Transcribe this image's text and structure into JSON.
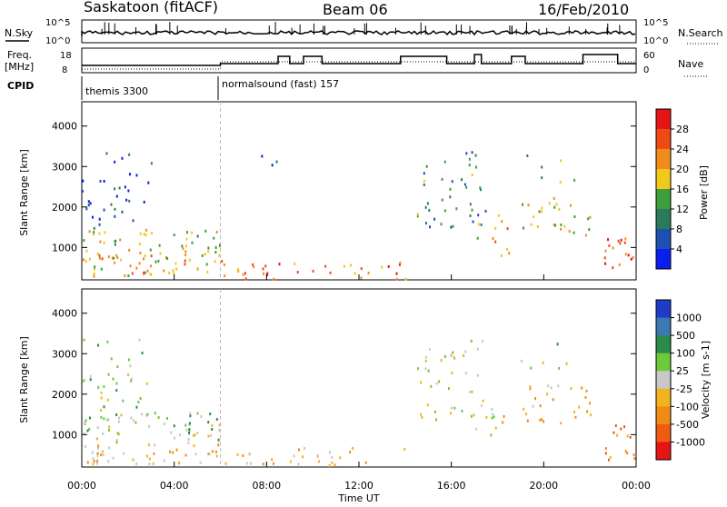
{
  "header": {
    "station": "Saskatoon (fitACF)",
    "beam": "Beam 06",
    "date": "16/Feb/2010"
  },
  "top_panels": {
    "nsky_label": "N.Sky",
    "nsky_top": "10^5",
    "nsky_bottom": "10^0",
    "nsearch_label": "N.Search",
    "nsearch_top": "10^5",
    "nsearch_bottom": "10^0",
    "freq_label_1": "Freq.",
    "freq_label_2": "[MHz]",
    "freq_ticks": [
      "18",
      "8"
    ],
    "nave_label": "Nave",
    "nave_ticks": [
      "60",
      "0"
    ],
    "cpid_label": "CPID",
    "cpid_modes": [
      {
        "name": "themis 3300",
        "start_hour": 0
      },
      {
        "name": "normalsound (fast) 157",
        "start_hour": 6
      }
    ]
  },
  "chart_data": [
    {
      "type": "heatmap",
      "title": "",
      "ylabel": "Slant Range [km]",
      "xlabel": "",
      "xlim": [
        0,
        24
      ],
      "ylim": [
        200,
        4600
      ],
      "y_ticks": [
        "1000",
        "2000",
        "3000",
        "4000"
      ],
      "colorbar": {
        "label": "Power [dB]",
        "ticks": [
          "4",
          "8",
          "12",
          "16",
          "20",
          "24",
          "28"
        ],
        "colors": [
          "#0a1ef0",
          "#1e50b4",
          "#2c7a5a",
          "#3c9e3c",
          "#f0c81e",
          "#f08c1e",
          "#f04a14",
          "#e61414"
        ]
      }
    },
    {
      "type": "heatmap",
      "title": "",
      "ylabel": "Slant Range [km]",
      "xlabel": "Time UT",
      "xlim": [
        0,
        24
      ],
      "ylim": [
        200,
        4600
      ],
      "y_ticks": [
        "1000",
        "2000",
        "3000",
        "4000"
      ],
      "x_ticks": [
        "00:00",
        "04:00",
        "08:00",
        "12:00",
        "16:00",
        "20:00",
        "00:00"
      ],
      "colorbar": {
        "label": "Velocity [m s-1]",
        "ticks": [
          "1000",
          "500",
          "100",
          "25",
          "-25",
          "-100",
          "-500",
          "-1000"
        ],
        "colors": [
          "#1e3cc8",
          "#3c78b4",
          "#2c8a4a",
          "#6ec83c",
          "#c8c8c8",
          "#f0b41e",
          "#f08c14",
          "#f05a14",
          "#e61414"
        ]
      }
    }
  ]
}
